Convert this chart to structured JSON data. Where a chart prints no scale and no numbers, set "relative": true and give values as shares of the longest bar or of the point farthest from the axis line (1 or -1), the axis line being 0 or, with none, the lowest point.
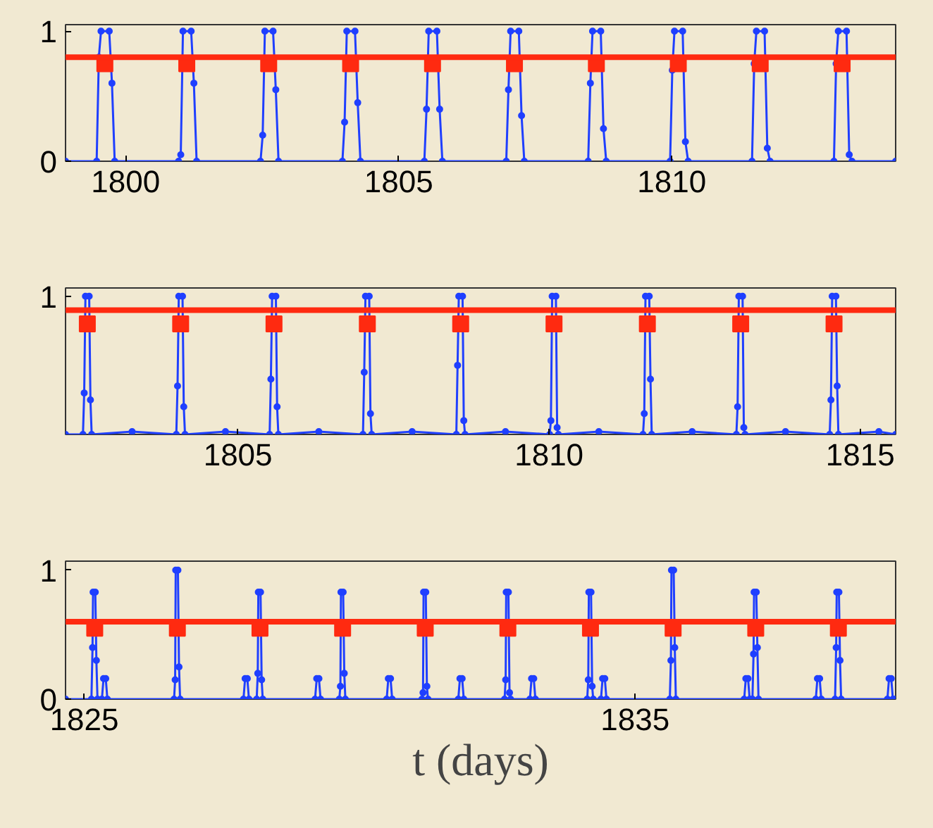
{
  "chart_data": [
    {
      "type": "line",
      "xlim": [
        1798.9,
        1814.1
      ],
      "ylim": [
        0,
        1.05
      ],
      "xticks": [
        1800,
        1805,
        1810
      ],
      "yticks": [
        0,
        1
      ],
      "grid": false,
      "ref_lines": [
        {
          "axis": "y",
          "value": 0.8,
          "color": "#ff2a10"
        }
      ],
      "series": [
        {
          "color": "#1f3fff",
          "marker": "circle",
          "x": [
            1798.9,
            1799.47,
            1799.51,
            1799.55,
            1799.7,
            1799.75,
            1799.8,
            1800.97,
            1801.01,
            1801.05,
            1801.2,
            1801.25,
            1801.3,
            1802.47,
            1802.51,
            1802.55,
            1802.7,
            1802.75,
            1802.8,
            1803.97,
            1804.01,
            1804.05,
            1804.2,
            1804.25,
            1804.3,
            1805.47,
            1805.51,
            1805.55,
            1805.7,
            1805.75,
            1805.8,
            1806.97,
            1807.01,
            1807.05,
            1807.2,
            1807.25,
            1807.3,
            1808.47,
            1808.51,
            1808.55,
            1808.7,
            1808.75,
            1808.8,
            1809.97,
            1810.01,
            1810.05,
            1810.2,
            1810.25,
            1810.3,
            1811.47,
            1811.51,
            1811.55,
            1811.7,
            1811.75,
            1811.8,
            1812.97,
            1813.01,
            1813.05,
            1813.2,
            1813.25,
            1813.3,
            1814.1
          ],
          "values": [
            0,
            0,
            0.8,
            1,
            1,
            0.6,
            0,
            0,
            0.05,
            1,
            1,
            0.6,
            0,
            0,
            0.2,
            1,
            1,
            0.55,
            0,
            0,
            0.3,
            1,
            1,
            0.45,
            0,
            0,
            0.4,
            1,
            1,
            0.4,
            0,
            0,
            0.55,
            1,
            1,
            0.35,
            0,
            0,
            0.6,
            1,
            1,
            0.25,
            0,
            0,
            0.7,
            1,
            1,
            0.15,
            0,
            0,
            0.75,
            1,
            1,
            0.1,
            0,
            0,
            0.75,
            1,
            1,
            0.05,
            0,
            0
          ]
        },
        {
          "type": "scatter",
          "color": "#ff2a10",
          "marker": "square",
          "x": [
            1799.62,
            1801.12,
            1802.62,
            1804.12,
            1805.62,
            1807.12,
            1808.62,
            1810.12,
            1811.62,
            1813.12
          ],
          "values": [
            0.75,
            0.75,
            0.75,
            0.75,
            0.75,
            0.75,
            0.75,
            0.75,
            0.75,
            0.75
          ]
        }
      ]
    },
    {
      "type": "line",
      "xlim": [
        1802.23,
        1815.57
      ],
      "relative": true,
      "xticks": [
        1805,
        1810,
        1815
      ],
      "annotations": [
        "1"
      ],
      "grid": false,
      "ref_lines": [
        {
          "axis": "y",
          "value": 0.9,
          "color": "#ff2a10"
        }
      ],
      "series": [
        {
          "color": "#1f3fff",
          "marker": "circle",
          "x": [
            1802.23,
            1802.51,
            1802.53,
            1802.55,
            1802.61,
            1802.63,
            1802.65,
            1803.3,
            1804.01,
            1804.03,
            1804.05,
            1804.11,
            1804.13,
            1804.15,
            1804.8,
            1805.51,
            1805.53,
            1805.55,
            1805.61,
            1805.63,
            1805.65,
            1806.3,
            1807.01,
            1807.03,
            1807.05,
            1807.11,
            1807.13,
            1807.15,
            1807.8,
            1808.51,
            1808.53,
            1808.55,
            1808.61,
            1808.63,
            1808.65,
            1809.3,
            1810.01,
            1810.03,
            1810.05,
            1810.11,
            1810.13,
            1810.15,
            1810.8,
            1811.51,
            1811.53,
            1811.55,
            1811.61,
            1811.63,
            1811.65,
            1812.3,
            1813.01,
            1813.03,
            1813.05,
            1813.11,
            1813.13,
            1813.15,
            1813.8,
            1814.51,
            1814.53,
            1814.55,
            1814.61,
            1814.63,
            1814.65,
            1815.3,
            1815.57
          ],
          "values": [
            0,
            0,
            0.3,
            1,
            1,
            0.25,
            0,
            0.02,
            0,
            0.35,
            1,
            1,
            0.2,
            0,
            0.02,
            0,
            0.4,
            1,
            1,
            0.2,
            0,
            0.02,
            0,
            0.45,
            1,
            1,
            0.15,
            0,
            0.02,
            0,
            0.5,
            1,
            1,
            0.1,
            0,
            0.02,
            0,
            0.1,
            1,
            1,
            0.05,
            0,
            0.02,
            0,
            0.15,
            1,
            1,
            0.4,
            0,
            0.02,
            0,
            0.2,
            1,
            1,
            0.05,
            0,
            0.02,
            0,
            0.25,
            1,
            1,
            0.35,
            0,
            0.02,
            0
          ]
        },
        {
          "type": "scatter",
          "color": "#ff2a10",
          "marker": "square",
          "x": [
            1802.58,
            1804.08,
            1805.58,
            1807.08,
            1808.58,
            1810.08,
            1811.58,
            1813.08,
            1814.58
          ],
          "values": [
            0.8,
            0.8,
            0.8,
            0.8,
            0.8,
            0.8,
            0.8,
            0.8,
            0.8
          ]
        }
      ]
    },
    {
      "type": "line",
      "xlim": [
        1824.66,
        1839.73
      ],
      "ylim": [
        0,
        1.07
      ],
      "xticks": [
        1825,
        1835
      ],
      "yticks": [
        0,
        1
      ],
      "grid": false,
      "xlabel": "t (days)",
      "ref_lines": [
        {
          "axis": "y",
          "value": 0.6,
          "color": "#ff2a10"
        }
      ],
      "series": [
        {
          "color": "#1f3fff",
          "marker": "circle",
          "x": [
            1824.66,
            1825.13,
            1825.15,
            1825.16,
            1825.2,
            1825.22,
            1825.24,
            1825.32,
            1825.35,
            1825.39,
            1825.42,
            1826.63,
            1826.65,
            1826.66,
            1826.7,
            1826.72,
            1826.74,
            1827.89,
            1827.92,
            1827.96,
            1827.99,
            1828.13,
            1828.15,
            1828.16,
            1828.2,
            1828.22,
            1828.24,
            1829.19,
            1829.22,
            1829.26,
            1829.29,
            1829.63,
            1829.65,
            1829.66,
            1829.7,
            1829.72,
            1829.74,
            1830.49,
            1830.52,
            1830.56,
            1830.59,
            1831.13,
            1831.15,
            1831.16,
            1831.2,
            1831.22,
            1831.24,
            1831.79,
            1831.82,
            1831.86,
            1831.89,
            1832.63,
            1832.65,
            1832.66,
            1832.7,
            1832.72,
            1832.74,
            1833.09,
            1833.12,
            1833.16,
            1833.19,
            1834.13,
            1834.15,
            1834.16,
            1834.2,
            1834.22,
            1834.24,
            1834.38,
            1834.41,
            1834.45,
            1834.48,
            1835.63,
            1835.65,
            1835.66,
            1835.7,
            1835.72,
            1835.74,
            1836.98,
            1837.01,
            1837.05,
            1837.08,
            1837.13,
            1837.15,
            1837.16,
            1837.2,
            1837.22,
            1837.24,
            1838.28,
            1838.31,
            1838.35,
            1838.38,
            1838.63,
            1838.65,
            1838.66,
            1838.7,
            1838.72,
            1838.74,
            1839.58,
            1839.61,
            1839.65,
            1839.68,
            1839.73
          ],
          "values": [
            0,
            0,
            0.4,
            0.83,
            0.83,
            0.3,
            0,
            0,
            0.16,
            0.16,
            0,
            0,
            0.15,
            1,
            1,
            0.25,
            0,
            0,
            0.16,
            0.16,
            0,
            0,
            0.2,
            0.83,
            0.83,
            0.15,
            0,
            0,
            0.16,
            0.16,
            0,
            0,
            0.1,
            0.83,
            0.83,
            0.2,
            0,
            0,
            0.16,
            0.16,
            0,
            0,
            0.05,
            0.83,
            0.83,
            0.1,
            0,
            0,
            0.16,
            0.16,
            0,
            0,
            0.15,
            0.83,
            0.83,
            0.05,
            0,
            0,
            0.16,
            0.16,
            0,
            0,
            0.15,
            0.83,
            0.83,
            0.1,
            0,
            0,
            0.16,
            0.16,
            0,
            0,
            0.3,
            1,
            1,
            0.4,
            0,
            0,
            0.16,
            0.16,
            0,
            0,
            0.35,
            0.83,
            0.83,
            0.4,
            0,
            0,
            0.16,
            0.16,
            0,
            0,
            0.4,
            0.83,
            0.83,
            0.3,
            0,
            0,
            0.16,
            0.16,
            0,
            0
          ]
        },
        {
          "type": "scatter",
          "color": "#ff2a10",
          "marker": "square",
          "x": [
            1825.19,
            1826.69,
            1828.19,
            1829.69,
            1831.19,
            1832.69,
            1834.19,
            1835.69,
            1837.19,
            1838.69
          ],
          "values": [
            0.55,
            0.55,
            0.55,
            0.55,
            0.55,
            0.55,
            0.55,
            0.55,
            0.55,
            0.55
          ]
        }
      ]
    }
  ]
}
